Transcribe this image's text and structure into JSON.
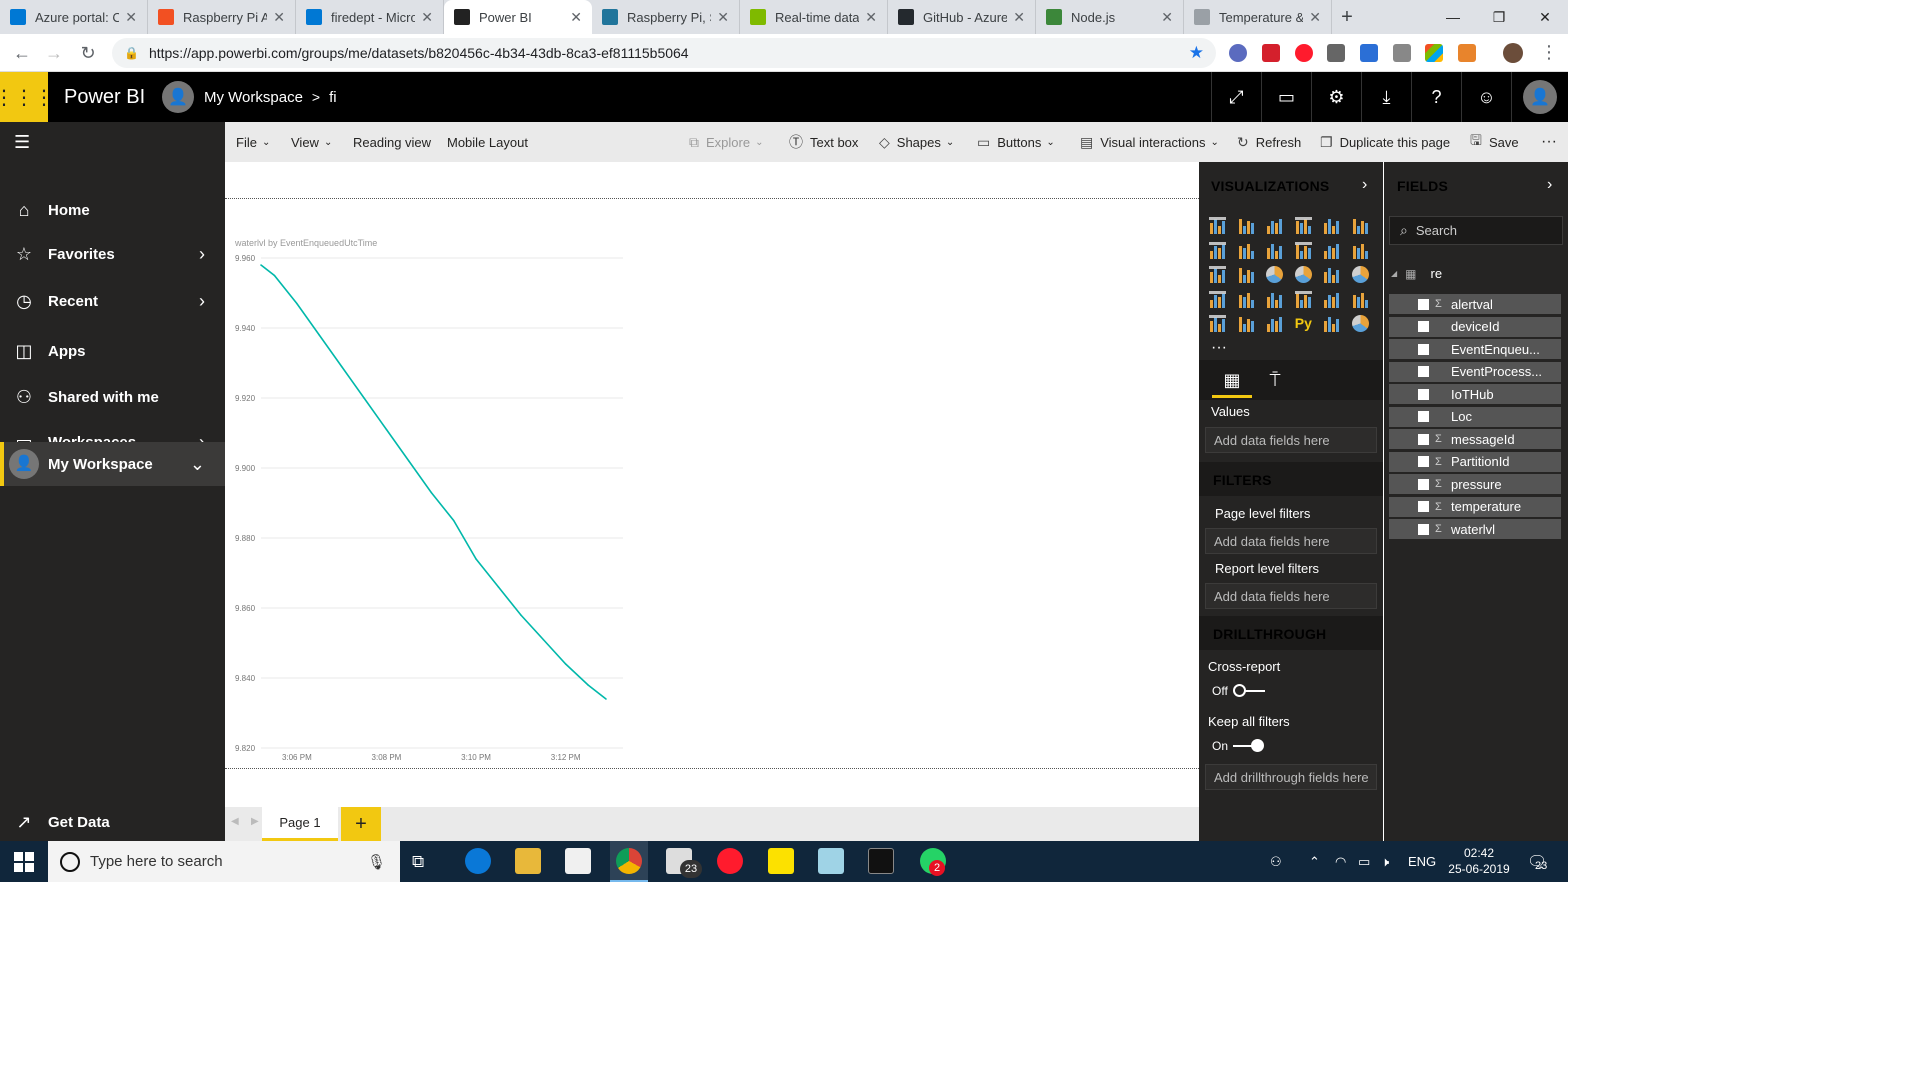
{
  "browser": {
    "tabs": [
      {
        "label": "Azure portal: C",
        "icon": "azure-portal-icon",
        "color": "#0078d4",
        "active": false
      },
      {
        "label": "Raspberry Pi Az",
        "icon": "microsoft-icon",
        "color": "#f25022",
        "active": false
      },
      {
        "label": "firedept - Micro",
        "icon": "azure-icon",
        "color": "#0078d4",
        "active": false
      },
      {
        "label": "Power BI",
        "icon": "powerbi-icon",
        "color": "#222222",
        "active": true
      },
      {
        "label": "Raspberry Pi, Se",
        "icon": "wordpress-icon",
        "color": "#21759b",
        "active": false
      },
      {
        "label": "Real-time data",
        "icon": "microsoft-icon",
        "color": "#7fba00",
        "active": false
      },
      {
        "label": "GitHub - Azure",
        "icon": "github-icon",
        "color": "#24292e",
        "active": false
      },
      {
        "label": "Node.js",
        "icon": "nodejs-icon",
        "color": "#3c873a",
        "active": false
      },
      {
        "label": "Temperature &",
        "icon": "globe-icon",
        "color": "#9aa0a6",
        "active": false
      }
    ],
    "url": "https://app.powerbi.com/groups/me/datasets/b820456c-4b34-43db-8ca3-ef81115b5064"
  },
  "header": {
    "app_name": "Power BI",
    "workspace": "My Workspace",
    "separator": ">",
    "report": "fi"
  },
  "nav": {
    "items": [
      {
        "label": "Home",
        "icon": "home-icon",
        "has_chevron": false
      },
      {
        "label": "Favorites",
        "icon": "star-icon",
        "has_chevron": true
      },
      {
        "label": "Recent",
        "icon": "clock-icon",
        "has_chevron": true
      },
      {
        "label": "Apps",
        "icon": "apps-icon",
        "has_chevron": false
      },
      {
        "label": "Shared with me",
        "icon": "shared-icon",
        "has_chevron": false
      },
      {
        "label": "Workspaces",
        "icon": "workspaces-icon",
        "has_chevron": true
      }
    ],
    "current_workspace": "My Workspace",
    "get_data": "Get Data"
  },
  "toolbar": {
    "file": "File",
    "view": "View",
    "reading_view": "Reading view",
    "mobile_layout": "Mobile Layout",
    "explore": "Explore",
    "text_box": "Text box",
    "shapes": "Shapes",
    "buttons": "Buttons",
    "visual_interactions": "Visual interactions",
    "refresh": "Refresh",
    "duplicate_page": "Duplicate this page",
    "save": "Save",
    "more": "···"
  },
  "chart_data": {
    "type": "line",
    "title": "waterlvl by EventEnqueuedUtcTime",
    "ylim": [
      9.82,
      9.96
    ],
    "yticks": [
      "9.960",
      "9.940",
      "9.920",
      "9.900",
      "9.880",
      "9.860",
      "9.840",
      "9.820"
    ],
    "xticks": [
      "3:06 PM",
      "3:08 PM",
      "3:10 PM",
      "3:12 PM"
    ],
    "x_minutes": [
      5.2,
      5.5,
      6.0,
      6.5,
      7.0,
      7.5,
      8.0,
      8.5,
      9.0,
      9.5,
      10.0,
      10.5,
      11.0,
      11.5,
      12.0,
      12.5,
      12.9
    ],
    "series": [
      {
        "values": [
          9.958,
          9.955,
          9.947,
          9.938,
          9.929,
          9.92,
          9.911,
          9.902,
          9.893,
          9.885,
          9.874,
          9.866,
          9.858,
          9.851,
          9.844,
          9.838,
          9.834
        ]
      }
    ],
    "line_color": "#01b8aa",
    "grid": true
  },
  "pages": {
    "tabs": [
      "Page 1"
    ],
    "add": "+"
  },
  "visualizations": {
    "title": "VISUALIZATIONS",
    "values_label": "Values",
    "values_placeholder": "Add data fields here",
    "icon_colors": [
      "#e8a33b",
      "#5aa0d8",
      "#cfcfcf"
    ]
  },
  "filters": {
    "title": "FILTERS",
    "page_level": "Page level filters",
    "page_placeholder": "Add data fields here",
    "report_level": "Report level filters",
    "report_placeholder": "Add data fields here"
  },
  "drillthrough": {
    "title": "DRILLTHROUGH",
    "cross_report": "Cross-report",
    "cross_report_state": "Off",
    "keep_filters": "Keep all filters",
    "keep_filters_state": "On",
    "placeholder": "Add drillthrough fields here"
  },
  "fields": {
    "title": "FIELDS",
    "search_placeholder": "Search",
    "table": "re",
    "items": [
      {
        "name": "alertval",
        "sigma": true
      },
      {
        "name": "deviceId",
        "sigma": false
      },
      {
        "name": "EventEnqueu...",
        "sigma": false
      },
      {
        "name": "EventProcess...",
        "sigma": false
      },
      {
        "name": "IoTHub",
        "sigma": false
      },
      {
        "name": "Loc",
        "sigma": false
      },
      {
        "name": "messageId",
        "sigma": true
      },
      {
        "name": "PartitionId",
        "sigma": true
      },
      {
        "name": "pressure",
        "sigma": true
      },
      {
        "name": "temperature",
        "sigma": true
      },
      {
        "name": "waterlvl",
        "sigma": true
      }
    ]
  },
  "taskbar": {
    "search_placeholder": "Type here to search",
    "language": "ENG",
    "time": "02:42",
    "date": "25-06-2019",
    "mail_badge": "23",
    "whatsapp_badge": "2",
    "notifications_badge": "23"
  }
}
